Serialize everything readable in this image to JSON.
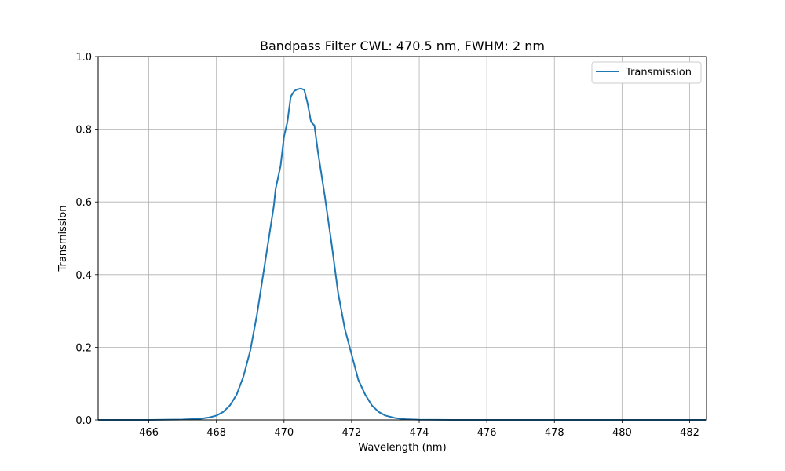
{
  "chart_data": {
    "type": "line",
    "title": "Bandpass Filter CWL: 470.5 nm, FWHM: 2 nm",
    "xlabel": "Wavelength (nm)",
    "ylabel": "Transmission",
    "xlim": [
      464.5,
      482.5
    ],
    "ylim": [
      0.0,
      1.0
    ],
    "xticks": [
      466,
      468,
      470,
      472,
      474,
      476,
      478,
      480,
      482
    ],
    "xtick_labels": [
      "466",
      "468",
      "470",
      "472",
      "474",
      "476",
      "478",
      "480",
      "482"
    ],
    "yticks": [
      0.0,
      0.2,
      0.4,
      0.6,
      0.8,
      1.0
    ],
    "ytick_labels": [
      "0.0",
      "0.2",
      "0.4",
      "0.6",
      "0.8",
      "1.0"
    ],
    "grid": true,
    "legend": "top-right",
    "series": [
      {
        "name": "Transmission",
        "color": "#1f77b4",
        "x": [
          464.5,
          466.0,
          467.0,
          467.5,
          467.8,
          468.0,
          468.2,
          468.4,
          468.6,
          468.8,
          469.0,
          469.2,
          469.4,
          469.6,
          469.7,
          469.75,
          469.9,
          470.0,
          470.1,
          470.2,
          470.3,
          470.4,
          470.5,
          470.6,
          470.7,
          470.8,
          470.9,
          471.0,
          471.2,
          471.4,
          471.6,
          471.8,
          472.0,
          472.2,
          472.4,
          472.6,
          472.8,
          473.0,
          473.3,
          473.6,
          474.0,
          475.0,
          482.5
        ],
        "y": [
          0.0,
          0.0,
          0.001,
          0.003,
          0.007,
          0.012,
          0.022,
          0.04,
          0.07,
          0.12,
          0.19,
          0.29,
          0.41,
          0.53,
          0.59,
          0.635,
          0.7,
          0.78,
          0.82,
          0.89,
          0.905,
          0.91,
          0.912,
          0.908,
          0.87,
          0.82,
          0.81,
          0.74,
          0.62,
          0.49,
          0.35,
          0.25,
          0.18,
          0.11,
          0.07,
          0.04,
          0.022,
          0.012,
          0.005,
          0.002,
          0.0005,
          0.0,
          0.0
        ]
      }
    ]
  }
}
